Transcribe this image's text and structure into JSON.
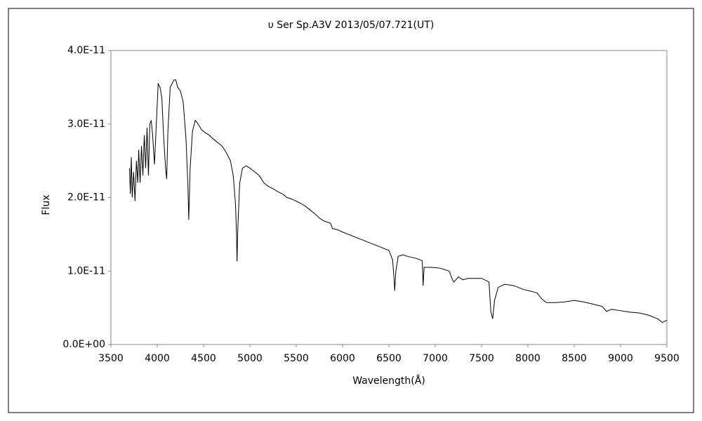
{
  "chart_data": {
    "type": "line",
    "title": "υ Ser   Sp.A3V   2013/05/07.721(UT)",
    "x_label": "Wavelength(Å)",
    "y_label": "Flux",
    "color": "#000000",
    "xlim": [
      3500,
      9500
    ],
    "xticks": [
      3500,
      4000,
      4500,
      5000,
      5500,
      6000,
      6500,
      7000,
      7500,
      8000,
      8500,
      9000,
      9500
    ],
    "ylim": [
      0,
      4e-11
    ],
    "yticks": [
      {
        "value": 0,
        "label": "0.0E+00"
      },
      {
        "value": 1e-11,
        "label": "1.0E-11"
      },
      {
        "value": 2e-11,
        "label": "2.0E-11"
      },
      {
        "value": 3e-11,
        "label": "3.0E-11"
      },
      {
        "value": 4e-11,
        "label": "4.0E-11"
      }
    ],
    "x": [
      3700,
      3710,
      3720,
      3730,
      3745,
      3760,
      3775,
      3790,
      3800,
      3815,
      3830,
      3845,
      3860,
      3875,
      3890,
      3905,
      3920,
      3935,
      3950,
      3970,
      3990,
      4010,
      4030,
      4050,
      4070,
      4090,
      4102,
      4115,
      4140,
      4160,
      4180,
      4200,
      4220,
      4250,
      4280,
      4310,
      4330,
      4340,
      4355,
      4380,
      4410,
      4440,
      4480,
      4520,
      4560,
      4600,
      4650,
      4700,
      4750,
      4790,
      4820,
      4845,
      4855,
      4861,
      4870,
      4890,
      4920,
      4960,
      5000,
      5050,
      5100,
      5150,
      5200,
      5250,
      5300,
      5350,
      5400,
      5450,
      5500,
      5550,
      5600,
      5650,
      5700,
      5750,
      5800,
      5870,
      5890,
      5950,
      6000,
      6100,
      6200,
      6300,
      6400,
      6500,
      6540,
      6555,
      6563,
      6575,
      6600,
      6650,
      6700,
      6800,
      6860,
      6869,
      6880,
      6950,
      7050,
      7150,
      7180,
      7200,
      7250,
      7300,
      7350,
      7500,
      7580,
      7600,
      7620,
      7640,
      7680,
      7750,
      7850,
      7950,
      8050,
      8100,
      8150,
      8200,
      8300,
      8400,
      8500,
      8600,
      8700,
      8800,
      8850,
      8900,
      9000,
      9100,
      9200,
      9300,
      9400,
      9450,
      9500
    ],
    "values": [
      2.4e-11,
      2.05e-11,
      2.55e-11,
      2e-11,
      2.35e-11,
      1.95e-11,
      2.5e-11,
      2.2e-11,
      2.65e-11,
      2.2e-11,
      2.7e-11,
      2.3e-11,
      2.85e-11,
      2.4e-11,
      2.95e-11,
      2.3e-11,
      3e-11,
      3.05e-11,
      2.85e-11,
      2.45e-11,
      3e-11,
      3.55e-11,
      3.5e-11,
      3.35e-11,
      2.8e-11,
      2.4e-11,
      2.25e-11,
      2.9e-11,
      3.5e-11,
      3.55e-11,
      3.6e-11,
      3.6e-11,
      3.5e-11,
      3.45e-11,
      3.3e-11,
      2.8e-11,
      2.2e-11,
      1.7e-11,
      2.4e-11,
      2.9e-11,
      3.05e-11,
      3e-11,
      2.92e-11,
      2.88e-11,
      2.85e-11,
      2.8e-11,
      2.75e-11,
      2.7e-11,
      2.6e-11,
      2.5e-11,
      2.3e-11,
      1.9e-11,
      1.5e-11,
      1.13e-11,
      1.6e-11,
      2.2e-11,
      2.4e-11,
      2.43e-11,
      2.4e-11,
      2.35e-11,
      2.3e-11,
      2.2e-11,
      2.15e-11,
      2.12e-11,
      2.08e-11,
      2.05e-11,
      2e-11,
      1.98e-11,
      1.95e-11,
      1.92e-11,
      1.88e-11,
      1.83e-11,
      1.78e-11,
      1.72e-11,
      1.68e-11,
      1.65e-11,
      1.58e-11,
      1.56e-11,
      1.53e-11,
      1.48e-11,
      1.43e-11,
      1.38e-11,
      1.33e-11,
      1.28e-11,
      1.15e-11,
      9e-12,
      7.3e-12,
      1e-11,
      1.2e-11,
      1.22e-11,
      1.2e-11,
      1.17e-11,
      1.14e-11,
      8e-12,
      1.05e-11,
      1.05e-11,
      1.04e-11,
      1e-11,
      9e-12,
      8.5e-12,
      9.2e-12,
      8.8e-12,
      9e-12,
      9e-12,
      8.5e-12,
      4.5e-12,
      3.5e-12,
      6e-12,
      7.8e-12,
      8.2e-12,
      8e-12,
      7.5e-12,
      7.2e-12,
      7e-12,
      6.2e-12,
      5.7e-12,
      5.7e-12,
      5.8e-12,
      6e-12,
      5.8e-12,
      5.5e-12,
      5.2e-12,
      4.5e-12,
      4.8e-12,
      4.6e-12,
      4.4e-12,
      4.3e-12,
      4e-12,
      3.5e-12,
      3e-12,
      3.3e-12
    ]
  }
}
